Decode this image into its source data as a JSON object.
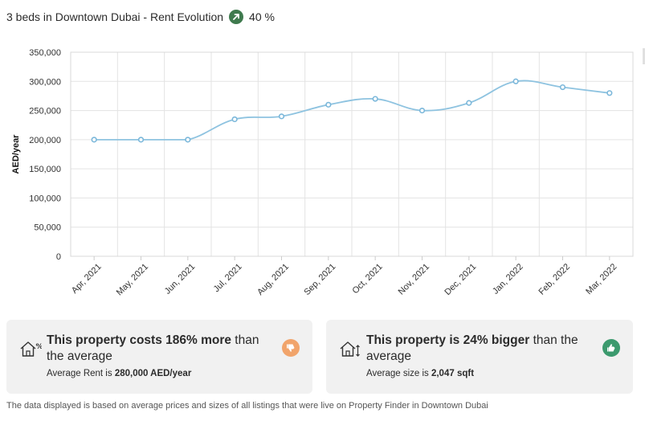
{
  "header": {
    "title": "3 beds in Downtown Dubai - Rent Evolution",
    "change": "40 %",
    "trend_icon": "arrow-up-right-icon",
    "trend_color": "#3f7a4e"
  },
  "chart_data": {
    "type": "line",
    "title": "",
    "xlabel": "",
    "ylabel": "AED/year",
    "categories": [
      "Apr, 2021",
      "May, 2021",
      "Jun, 2021",
      "Jul, 2021",
      "Aug, 2021",
      "Sep, 2021",
      "Oct, 2021",
      "Nov, 2021",
      "Dec, 2021",
      "Jan, 2022",
      "Feb, 2022",
      "Mar, 2022"
    ],
    "series": [
      {
        "values": [
          200000,
          200000,
          200000,
          235000,
          240000,
          260000,
          270000,
          250000,
          263000,
          300000,
          290000,
          280000
        ]
      }
    ],
    "ylim": [
      0,
      350000
    ],
    "yticks": [
      "0",
      "50,000",
      "100,000",
      "150,000",
      "200,000",
      "250,000",
      "300,000",
      "350,000"
    ],
    "grid": true,
    "line_color": "#8ec3e0"
  },
  "cards": [
    {
      "title_bold": "This property costs 186% more",
      "title_rest": " than the average",
      "sub_prefix": "Average Rent is ",
      "sub_value": "280,000 AED/year",
      "icon": "house-percent-icon",
      "badge_icon": "thumbs-down-icon",
      "badge_color": "#f1a46b"
    },
    {
      "title_bold": "This property is 24% bigger",
      "title_rest": " than the average",
      "sub_prefix": "Average size is ",
      "sub_value": "2,047 sqft",
      "icon": "house-size-icon",
      "badge_icon": "thumbs-up-icon",
      "badge_color": "#3c9a6e"
    }
  ],
  "footer": "The data displayed is based on average prices and sizes of all listings that were live on Property Finder in Downtown Dubai"
}
